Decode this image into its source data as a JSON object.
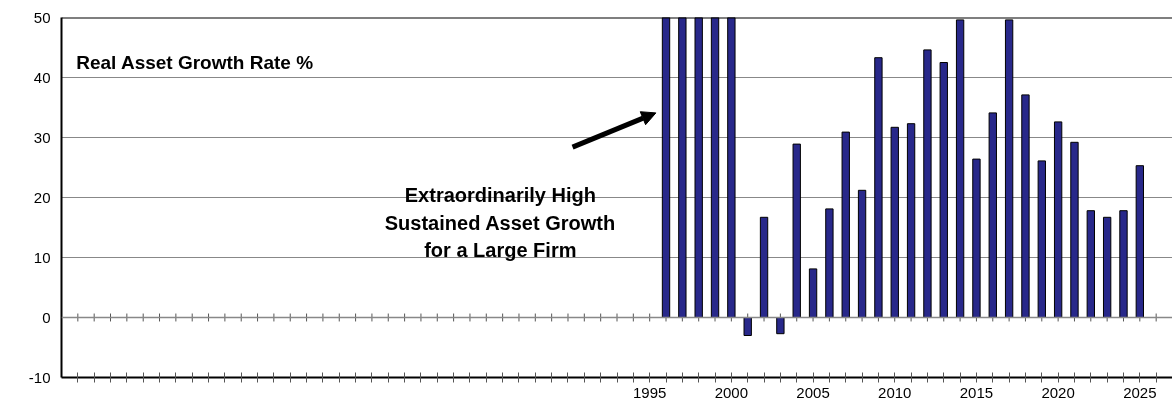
{
  "chart_data": {
    "type": "bar",
    "title": "Real Asset Growth Rate %",
    "x": [
      1996,
      1997,
      1998,
      1999,
      2000,
      2001,
      2002,
      2003,
      2004,
      2005,
      2006,
      2007,
      2008,
      2009,
      2010,
      2011,
      2012,
      2013,
      2014,
      2015,
      2016,
      2017,
      2018,
      2019,
      2020,
      2021,
      2022,
      2023,
      2024,
      2025
    ],
    "values": [
      50,
      50,
      50,
      50,
      50,
      -3,
      16.7,
      -2.7,
      28.9,
      8.1,
      18.1,
      30.9,
      21.2,
      43.3,
      31.7,
      32.3,
      44.6,
      42.5,
      49.6,
      26.4,
      34.1,
      49.6,
      37.1,
      26.1,
      32.6,
      29.2,
      17.8,
      16.7,
      17.8,
      25.3
    ],
    "color": "#28288a",
    "xlim": [
      1959,
      2027
    ],
    "ylim": [
      -10,
      50
    ],
    "xticks": [
      {
        "value": 1960,
        "label": null
      },
      {
        "value": 1961,
        "label": null
      },
      {
        "value": 1962,
        "label": null
      },
      {
        "value": 1963,
        "label": null
      },
      {
        "value": 1964,
        "label": null
      },
      {
        "value": 1965,
        "label": null
      },
      {
        "value": 1966,
        "label": null
      },
      {
        "value": 1967,
        "label": null
      },
      {
        "value": 1968,
        "label": null
      },
      {
        "value": 1969,
        "label": null
      },
      {
        "value": 1970,
        "label": null
      },
      {
        "value": 1971,
        "label": null
      },
      {
        "value": 1972,
        "label": null
      },
      {
        "value": 1973,
        "label": null
      },
      {
        "value": 1974,
        "label": null
      },
      {
        "value": 1975,
        "label": null
      },
      {
        "value": 1976,
        "label": null
      },
      {
        "value": 1977,
        "label": null
      },
      {
        "value": 1978,
        "label": null
      },
      {
        "value": 1979,
        "label": null
      },
      {
        "value": 1980,
        "label": null
      },
      {
        "value": 1981,
        "label": null
      },
      {
        "value": 1982,
        "label": null
      },
      {
        "value": 1983,
        "label": null
      },
      {
        "value": 1984,
        "label": null
      },
      {
        "value": 1985,
        "label": null
      },
      {
        "value": 1986,
        "label": null
      },
      {
        "value": 1987,
        "label": null
      },
      {
        "value": 1988,
        "label": null
      },
      {
        "value": 1989,
        "label": null
      },
      {
        "value": 1990,
        "label": null
      },
      {
        "value": 1991,
        "label": null
      },
      {
        "value": 1992,
        "label": null
      },
      {
        "value": 1993,
        "label": null
      },
      {
        "value": 1994,
        "label": null
      },
      1995,
      {
        "value": 1996,
        "label": null
      },
      {
        "value": 1997,
        "label": null
      },
      {
        "value": 1998,
        "label": null
      },
      {
        "value": 1999,
        "label": null
      },
      2000,
      {
        "value": 2001,
        "label": null
      },
      {
        "value": 2002,
        "label": null
      },
      {
        "value": 2003,
        "label": null
      },
      {
        "value": 2004,
        "label": null
      },
      2005,
      {
        "value": 2006,
        "label": null
      },
      {
        "value": 2007,
        "label": null
      },
      {
        "value": 2008,
        "label": null
      },
      {
        "value": 2009,
        "label": null
      },
      2010,
      {
        "value": 2011,
        "label": null
      },
      {
        "value": 2012,
        "label": null
      },
      {
        "value": 2013,
        "label": null
      },
      {
        "value": 2014,
        "label": null
      },
      2015,
      {
        "value": 2016,
        "label": null
      },
      {
        "value": 2017,
        "label": null
      },
      {
        "value": 2018,
        "label": null
      },
      {
        "value": 2019,
        "label": null
      },
      2020,
      {
        "value": 2021,
        "label": null
      },
      {
        "value": 2022,
        "label": null
      },
      {
        "value": 2023,
        "label": null
      },
      {
        "value": 2024,
        "label": null
      },
      2025,
      {
        "value": 2026,
        "label": null
      }
    ],
    "yticks": [
      -10,
      0,
      10,
      20,
      30,
      40,
      50
    ],
    "grid": "y",
    "ref_lines": [
      {
        "axis": "y",
        "value": 0,
        "label": null
      }
    ],
    "annotations": [
      "Extraordinarily High\nSustained Asset Growth\nfor a Large Firm"
    ]
  }
}
